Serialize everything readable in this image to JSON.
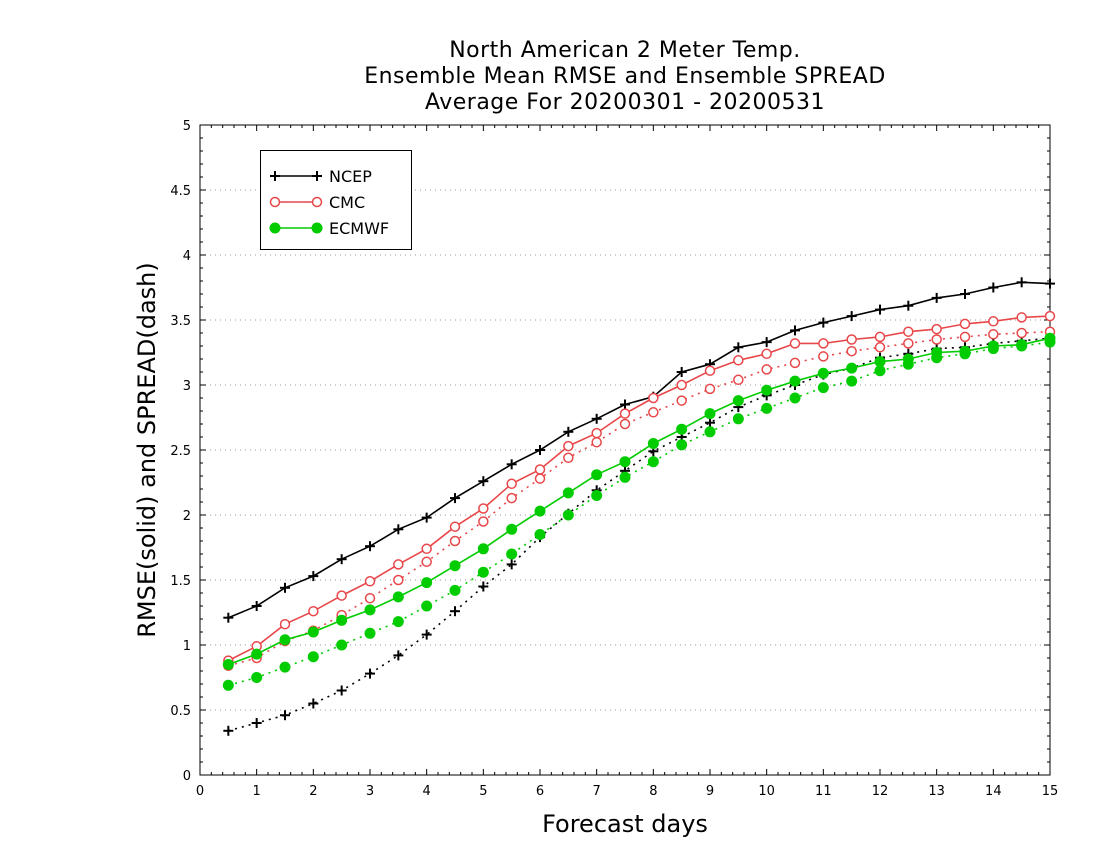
{
  "chart_data": {
    "type": "line",
    "title": [
      "North American 2 Meter Temp.",
      "Ensemble Mean RMSE and Ensemble SPREAD",
      "Average For 20200301 - 20200531"
    ],
    "xlabel": "Forecast days",
    "ylabel": "RMSE(solid) and SPREAD(dash)",
    "xlim": [
      0,
      15
    ],
    "ylim": [
      0,
      5
    ],
    "xticks": [
      "0",
      "1",
      "2",
      "3",
      "4",
      "5",
      "6",
      "7",
      "8",
      "9",
      "10",
      "11",
      "12",
      "13",
      "14",
      "15"
    ],
    "yticks": [
      "0",
      "0.5",
      "1",
      "1.5",
      "2",
      "2.5",
      "3",
      "3.5",
      "4",
      "4.5",
      "5"
    ],
    "grid": "horizontal dotted",
    "legend_position": "top-left",
    "x": [
      0.5,
      1,
      1.5,
      2,
      2.5,
      3,
      3.5,
      4,
      4.5,
      5,
      5.5,
      6,
      6.5,
      7,
      7.5,
      8,
      8.5,
      9,
      9.5,
      10,
      10.5,
      11,
      11.5,
      12,
      12.5,
      13,
      13.5,
      14,
      14.5,
      15
    ],
    "series": [
      {
        "name": "NCEP",
        "color": "#000000",
        "marker": "plus",
        "rmse": [
          1.21,
          1.3,
          1.44,
          1.53,
          1.66,
          1.76,
          1.89,
          1.98,
          2.13,
          2.26,
          2.39,
          2.5,
          2.64,
          2.74,
          2.85,
          2.91,
          3.1,
          3.16,
          3.29,
          3.33,
          3.42,
          3.48,
          3.53,
          3.58,
          3.61,
          3.67,
          3.7,
          3.75,
          3.79,
          3.78
        ],
        "spread": [
          0.34,
          0.4,
          0.46,
          0.55,
          0.65,
          0.78,
          0.92,
          1.08,
          1.26,
          1.45,
          1.62,
          1.83,
          2.01,
          2.19,
          2.34,
          2.49,
          2.6,
          2.71,
          2.83,
          2.92,
          3.0,
          3.08,
          3.13,
          3.21,
          3.24,
          3.28,
          3.29,
          3.32,
          3.34,
          3.36
        ]
      },
      {
        "name": "CMC",
        "color": "#e8474a",
        "marker": "open-circle",
        "rmse": [
          0.88,
          0.99,
          1.16,
          1.26,
          1.38,
          1.49,
          1.62,
          1.74,
          1.91,
          2.05,
          2.24,
          2.35,
          2.53,
          2.63,
          2.78,
          2.9,
          3.0,
          3.11,
          3.19,
          3.24,
          3.32,
          3.32,
          3.35,
          3.37,
          3.41,
          3.43,
          3.47,
          3.49,
          3.52,
          3.53
        ],
        "spread": [
          0.84,
          0.9,
          1.03,
          1.11,
          1.23,
          1.36,
          1.5,
          1.64,
          1.8,
          1.95,
          2.13,
          2.28,
          2.44,
          2.56,
          2.7,
          2.79,
          2.88,
          2.97,
          3.04,
          3.12,
          3.17,
          3.22,
          3.26,
          3.29,
          3.32,
          3.35,
          3.37,
          3.39,
          3.4,
          3.41
        ]
      },
      {
        "name": "ECMWF",
        "color": "#00cc00",
        "marker": "filled-circle",
        "rmse": [
          0.85,
          0.93,
          1.04,
          1.1,
          1.19,
          1.27,
          1.37,
          1.48,
          1.61,
          1.74,
          1.89,
          2.03,
          2.17,
          2.31,
          2.41,
          2.55,
          2.66,
          2.78,
          2.88,
          2.96,
          3.03,
          3.09,
          3.13,
          3.18,
          3.2,
          3.25,
          3.26,
          3.3,
          3.31,
          3.36
        ],
        "spread": [
          0.69,
          0.75,
          0.83,
          0.91,
          1.0,
          1.09,
          1.18,
          1.3,
          1.42,
          1.56,
          1.7,
          1.85,
          2.0,
          2.15,
          2.29,
          2.41,
          2.54,
          2.64,
          2.74,
          2.82,
          2.9,
          2.98,
          3.03,
          3.11,
          3.16,
          3.21,
          3.24,
          3.28,
          3.3,
          3.33
        ]
      }
    ]
  }
}
